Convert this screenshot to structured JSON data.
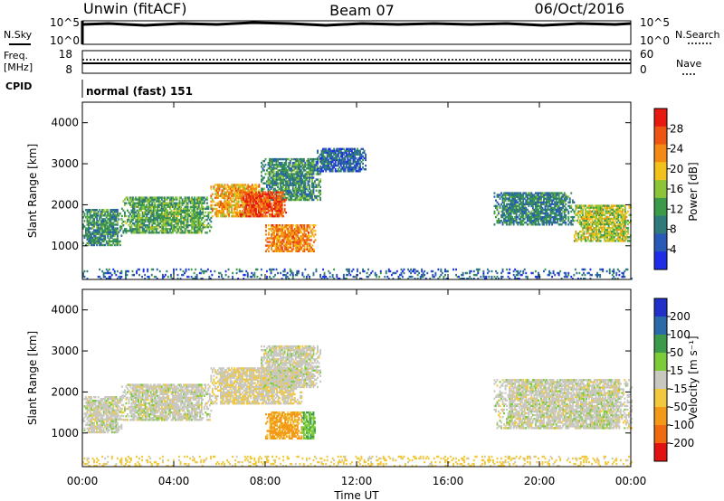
{
  "header": {
    "station": "Unwin (fitACF)",
    "beam": "Beam 07",
    "date": "06/Oct/2016"
  },
  "top_panels": {
    "nsky_label": "N.Sky",
    "nsearch_label": "N.Search",
    "count_tick_top": "10^5",
    "count_tick_bottom": "10^0",
    "freq_label_1": "Freq.",
    "freq_label_2": "[MHz]",
    "freq_tick_top": "18",
    "freq_tick_bottom": "8",
    "nave_label": "Nave",
    "nave_tick_top": "60",
    "nave_tick_bottom": "0",
    "cpid_label": "CPID",
    "cpid_value": "normal (fast) 151"
  },
  "colors": {
    "power_scale": [
      "#1f2ee6",
      "#2a5ab8",
      "#2f7a7a",
      "#3d9a4a",
      "#8cc43a",
      "#f2c21a",
      "#f28a14",
      "#ee5512",
      "#e61a10"
    ],
    "velocity_scale": [
      "#e01212",
      "#ef6a10",
      "#f29a18",
      "#f2c83c",
      "#c8c8c0",
      "#7ccc3a",
      "#3d9a4a",
      "#2a6aa8",
      "#2030c8"
    ]
  },
  "chart_data": [
    {
      "type": "heatmap",
      "quantity": "power",
      "ylabel": "Slant Range [km]",
      "xlabel": "Time UT",
      "x_ticks": [
        "00:00",
        "04:00",
        "08:00",
        "12:00",
        "16:00",
        "20:00",
        "00:00"
      ],
      "xlim_hours": [
        0,
        24
      ],
      "y_ticks": [
        1000,
        2000,
        3000,
        4000
      ],
      "ylim_km": [
        180,
        4500
      ],
      "colorbar_label": "Power [dB]",
      "colorbar_ticks": [
        "4",
        "8",
        "12",
        "16",
        "20",
        "24",
        "28"
      ],
      "clim": [
        0,
        30
      ],
      "echo_regions": [
        {
          "t_start": 0.0,
          "t_end": 1.7,
          "r_low": 1000,
          "r_high": 1900,
          "level": 10
        },
        {
          "t_start": 1.7,
          "t_end": 5.6,
          "r_low": 1300,
          "r_high": 2200,
          "level": 12
        },
        {
          "t_start": 5.6,
          "t_end": 7.8,
          "r_low": 1700,
          "r_high": 2500,
          "level": 20
        },
        {
          "t_start": 7.8,
          "t_end": 10.4,
          "r_low": 2100,
          "r_high": 3100,
          "level": 10
        },
        {
          "t_start": 6.9,
          "t_end": 8.9,
          "r_low": 1700,
          "r_high": 2300,
          "level": 26
        },
        {
          "t_start": 8.0,
          "t_end": 10.2,
          "r_low": 850,
          "r_high": 1500,
          "level": 22
        },
        {
          "t_start": 10.2,
          "t_end": 12.4,
          "r_low": 2800,
          "r_high": 3350,
          "level": 6
        },
        {
          "t_start": 18.0,
          "t_end": 21.5,
          "r_low": 1500,
          "r_high": 2300,
          "level": 9
        },
        {
          "t_start": 21.5,
          "t_end": 24.0,
          "r_low": 1100,
          "r_high": 2000,
          "level": 16
        },
        {
          "t_start": 0.0,
          "t_end": 24.0,
          "r_low": 180,
          "r_high": 450,
          "level": 6
        }
      ]
    },
    {
      "type": "heatmap",
      "quantity": "velocity",
      "ylabel": "Slant Range [km]",
      "xlabel": "Time UT",
      "x_ticks": [
        "00:00",
        "04:00",
        "08:00",
        "12:00",
        "16:00",
        "20:00",
        "00:00"
      ],
      "xlim_hours": [
        0,
        24
      ],
      "y_ticks": [
        1000,
        2000,
        3000,
        4000
      ],
      "ylim_km": [
        180,
        4500
      ],
      "colorbar_label": "Velocity [m s⁻¹]",
      "colorbar_ticks": [
        "200",
        "100",
        "50",
        "15",
        "-15",
        "-50",
        "-100",
        "-200"
      ],
      "clim": [
        -250,
        250
      ],
      "echo_regions": [
        {
          "t_start": 0.0,
          "t_end": 1.7,
          "r_low": 1000,
          "r_high": 1900,
          "level": 0
        },
        {
          "t_start": 1.7,
          "t_end": 5.6,
          "r_low": 1300,
          "r_high": 2200,
          "level": 0
        },
        {
          "t_start": 5.6,
          "t_end": 9.6,
          "r_low": 1700,
          "r_high": 2600,
          "level": -10
        },
        {
          "t_start": 7.8,
          "t_end": 10.4,
          "r_low": 2100,
          "r_high": 3100,
          "level": 0
        },
        {
          "t_start": 8.0,
          "t_end": 9.6,
          "r_low": 850,
          "r_high": 1500,
          "level": -60
        },
        {
          "t_start": 9.6,
          "t_end": 10.2,
          "r_low": 850,
          "r_high": 1500,
          "level": 40
        },
        {
          "t_start": 18.0,
          "t_end": 24.0,
          "r_low": 1100,
          "r_high": 2300,
          "level": 0
        },
        {
          "t_start": 0.0,
          "t_end": 24.0,
          "r_low": 180,
          "r_high": 450,
          "level": -30
        }
      ]
    }
  ]
}
